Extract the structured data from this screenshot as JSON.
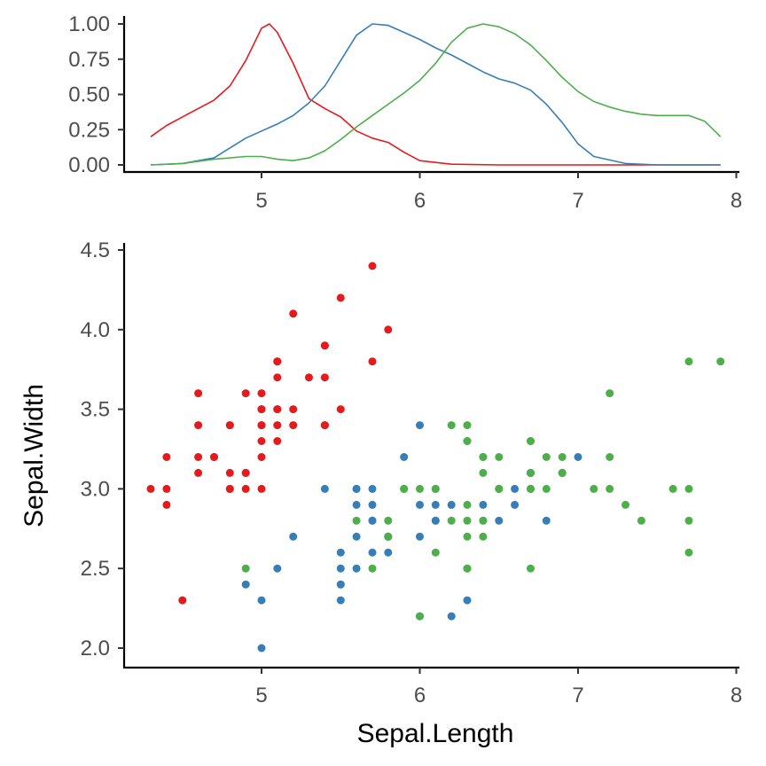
{
  "chart_data": [
    {
      "type": "line",
      "title": "",
      "xlabel": "",
      "ylabel": "",
      "xlim": [
        4.3,
        7.9
      ],
      "ylim": [
        0,
        1.0
      ],
      "x_ticks": [
        "5",
        "6",
        "7",
        "8"
      ],
      "y_ticks": [
        "0.00",
        "0.25",
        "0.50",
        "0.75",
        "1.00"
      ],
      "grid": false,
      "legend": "none",
      "series": [
        {
          "color": "#E41A1C",
          "points": [
            [
              4.3,
              0.2
            ],
            [
              4.4,
              0.28
            ],
            [
              4.5,
              0.34
            ],
            [
              4.6,
              0.4
            ],
            [
              4.7,
              0.46
            ],
            [
              4.8,
              0.56
            ],
            [
              4.9,
              0.74
            ],
            [
              5.0,
              0.97
            ],
            [
              5.05,
              1.0
            ],
            [
              5.1,
              0.94
            ],
            [
              5.2,
              0.72
            ],
            [
              5.3,
              0.47
            ],
            [
              5.4,
              0.4
            ],
            [
              5.5,
              0.34
            ],
            [
              5.6,
              0.24
            ],
            [
              5.7,
              0.19
            ],
            [
              5.8,
              0.16
            ],
            [
              5.9,
              0.09
            ],
            [
              6.0,
              0.03
            ],
            [
              6.2,
              0.005
            ],
            [
              6.5,
              0.0
            ],
            [
              7.0,
              0.0
            ],
            [
              7.5,
              0.0
            ],
            [
              7.9,
              0.0
            ]
          ]
        },
        {
          "color": "#377EB8",
          "points": [
            [
              4.3,
              0.0
            ],
            [
              4.5,
              0.01
            ],
            [
              4.7,
              0.05
            ],
            [
              4.8,
              0.12
            ],
            [
              4.9,
              0.19
            ],
            [
              5.0,
              0.24
            ],
            [
              5.1,
              0.29
            ],
            [
              5.2,
              0.35
            ],
            [
              5.3,
              0.44
            ],
            [
              5.4,
              0.56
            ],
            [
              5.5,
              0.74
            ],
            [
              5.6,
              0.92
            ],
            [
              5.7,
              1.0
            ],
            [
              5.8,
              0.99
            ],
            [
              5.9,
              0.94
            ],
            [
              6.0,
              0.89
            ],
            [
              6.1,
              0.83
            ],
            [
              6.2,
              0.78
            ],
            [
              6.3,
              0.72
            ],
            [
              6.4,
              0.66
            ],
            [
              6.5,
              0.61
            ],
            [
              6.6,
              0.58
            ],
            [
              6.7,
              0.53
            ],
            [
              6.8,
              0.43
            ],
            [
              6.9,
              0.3
            ],
            [
              7.0,
              0.15
            ],
            [
              7.1,
              0.06
            ],
            [
              7.3,
              0.01
            ],
            [
              7.5,
              0.0
            ],
            [
              7.9,
              0.0
            ]
          ]
        },
        {
          "color": "#4DAF4A",
          "points": [
            [
              4.3,
              0.0
            ],
            [
              4.5,
              0.01
            ],
            [
              4.7,
              0.04
            ],
            [
              4.9,
              0.06
            ],
            [
              5.0,
              0.06
            ],
            [
              5.1,
              0.04
            ],
            [
              5.2,
              0.03
            ],
            [
              5.3,
              0.05
            ],
            [
              5.4,
              0.1
            ],
            [
              5.5,
              0.18
            ],
            [
              5.6,
              0.27
            ],
            [
              5.7,
              0.35
            ],
            [
              5.8,
              0.43
            ],
            [
              5.9,
              0.51
            ],
            [
              6.0,
              0.6
            ],
            [
              6.1,
              0.72
            ],
            [
              6.2,
              0.87
            ],
            [
              6.3,
              0.97
            ],
            [
              6.4,
              1.0
            ],
            [
              6.5,
              0.98
            ],
            [
              6.6,
              0.93
            ],
            [
              6.7,
              0.85
            ],
            [
              6.8,
              0.74
            ],
            [
              6.9,
              0.62
            ],
            [
              7.0,
              0.52
            ],
            [
              7.1,
              0.45
            ],
            [
              7.2,
              0.41
            ],
            [
              7.3,
              0.38
            ],
            [
              7.4,
              0.36
            ],
            [
              7.5,
              0.35
            ],
            [
              7.6,
              0.35
            ],
            [
              7.7,
              0.35
            ],
            [
              7.8,
              0.31
            ],
            [
              7.9,
              0.2
            ]
          ]
        }
      ]
    },
    {
      "type": "scatter",
      "title": "",
      "xlabel": "Sepal.Length",
      "ylabel": "Sepal.Width",
      "xlim": [
        4.3,
        7.9
      ],
      "ylim": [
        2.0,
        4.4
      ],
      "x_ticks": [
        "5",
        "6",
        "7",
        "8"
      ],
      "y_ticks": [
        "2.0",
        "2.5",
        "3.0",
        "3.5",
        "4.0",
        "4.5"
      ],
      "grid": false,
      "legend": "none",
      "series": [
        {
          "color": "#E41A1C",
          "points": [
            [
              5.1,
              3.5
            ],
            [
              4.9,
              3.0
            ],
            [
              4.7,
              3.2
            ],
            [
              4.6,
              3.1
            ],
            [
              5.0,
              3.6
            ],
            [
              5.4,
              3.9
            ],
            [
              4.6,
              3.4
            ],
            [
              5.0,
              3.4
            ],
            [
              4.4,
              2.9
            ],
            [
              4.9,
              3.1
            ],
            [
              5.4,
              3.7
            ],
            [
              4.8,
              3.4
            ],
            [
              4.8,
              3.0
            ],
            [
              4.3,
              3.0
            ],
            [
              5.8,
              4.0
            ],
            [
              5.7,
              4.4
            ],
            [
              5.4,
              3.9
            ],
            [
              5.1,
              3.5
            ],
            [
              5.7,
              3.8
            ],
            [
              5.1,
              3.8
            ],
            [
              5.4,
              3.4
            ],
            [
              5.1,
              3.7
            ],
            [
              4.6,
              3.6
            ],
            [
              5.1,
              3.3
            ],
            [
              4.8,
              3.4
            ],
            [
              5.0,
              3.0
            ],
            [
              5.0,
              3.4
            ],
            [
              5.2,
              3.5
            ],
            [
              5.2,
              3.4
            ],
            [
              4.7,
              3.2
            ],
            [
              4.8,
              3.1
            ],
            [
              5.4,
              3.4
            ],
            [
              5.2,
              4.1
            ],
            [
              5.5,
              4.2
            ],
            [
              4.9,
              3.1
            ],
            [
              5.0,
              3.2
            ],
            [
              5.5,
              3.5
            ],
            [
              4.9,
              3.6
            ],
            [
              4.4,
              3.0
            ],
            [
              5.1,
              3.4
            ],
            [
              5.0,
              3.5
            ],
            [
              4.5,
              2.3
            ],
            [
              4.4,
              3.2
            ],
            [
              5.0,
              3.5
            ],
            [
              5.1,
              3.8
            ],
            [
              4.8,
              3.0
            ],
            [
              5.1,
              3.8
            ],
            [
              4.6,
              3.2
            ],
            [
              5.3,
              3.7
            ],
            [
              5.0,
              3.3
            ]
          ]
        },
        {
          "color": "#377EB8",
          "points": [
            [
              7.0,
              3.2
            ],
            [
              6.4,
              3.2
            ],
            [
              6.9,
              3.1
            ],
            [
              5.5,
              2.3
            ],
            [
              6.5,
              2.8
            ],
            [
              5.7,
              2.8
            ],
            [
              6.3,
              3.3
            ],
            [
              4.9,
              2.4
            ],
            [
              6.6,
              2.9
            ],
            [
              5.2,
              2.7
            ],
            [
              5.0,
              2.0
            ],
            [
              5.9,
              3.0
            ],
            [
              6.0,
              2.2
            ],
            [
              6.1,
              2.9
            ],
            [
              5.6,
              2.9
            ],
            [
              6.7,
              3.1
            ],
            [
              5.6,
              3.0
            ],
            [
              5.8,
              2.7
            ],
            [
              6.2,
              2.2
            ],
            [
              5.6,
              2.5
            ],
            [
              5.9,
              3.2
            ],
            [
              6.1,
              2.8
            ],
            [
              6.3,
              2.5
            ],
            [
              6.1,
              2.8
            ],
            [
              6.4,
              2.9
            ],
            [
              6.6,
              3.0
            ],
            [
              6.8,
              2.8
            ],
            [
              6.7,
              3.0
            ],
            [
              6.0,
              2.9
            ],
            [
              5.7,
              2.6
            ],
            [
              5.5,
              2.4
            ],
            [
              5.5,
              2.4
            ],
            [
              5.8,
              2.7
            ],
            [
              6.0,
              2.7
            ],
            [
              5.4,
              3.0
            ],
            [
              6.0,
              3.4
            ],
            [
              6.7,
              3.1
            ],
            [
              6.3,
              2.3
            ],
            [
              5.6,
              3.0
            ],
            [
              5.5,
              2.5
            ],
            [
              5.5,
              2.6
            ],
            [
              6.1,
              3.0
            ],
            [
              5.8,
              2.6
            ],
            [
              5.0,
              2.3
            ],
            [
              5.6,
              2.7
            ],
            [
              5.7,
              3.0
            ],
            [
              5.7,
              2.9
            ],
            [
              6.2,
              2.9
            ],
            [
              5.1,
              2.5
            ],
            [
              5.7,
              2.8
            ]
          ]
        },
        {
          "color": "#4DAF4A",
          "points": [
            [
              6.3,
              3.3
            ],
            [
              5.8,
              2.7
            ],
            [
              7.1,
              3.0
            ],
            [
              6.3,
              2.9
            ],
            [
              6.5,
              3.0
            ],
            [
              7.6,
              3.0
            ],
            [
              4.9,
              2.5
            ],
            [
              7.3,
              2.9
            ],
            [
              6.7,
              2.5
            ],
            [
              7.2,
              3.6
            ],
            [
              6.5,
              3.2
            ],
            [
              6.4,
              2.7
            ],
            [
              6.8,
              3.0
            ],
            [
              5.7,
              2.5
            ],
            [
              5.8,
              2.8
            ],
            [
              6.4,
              3.2
            ],
            [
              6.5,
              3.0
            ],
            [
              7.7,
              3.8
            ],
            [
              7.7,
              2.6
            ],
            [
              6.0,
              2.2
            ],
            [
              6.9,
              3.2
            ],
            [
              5.6,
              2.8
            ],
            [
              7.7,
              2.8
            ],
            [
              6.3,
              2.7
            ],
            [
              6.7,
              3.3
            ],
            [
              7.2,
              3.2
            ],
            [
              6.2,
              2.8
            ],
            [
              6.1,
              3.0
            ],
            [
              6.4,
              2.8
            ],
            [
              7.2,
              3.0
            ],
            [
              7.4,
              2.8
            ],
            [
              7.9,
              3.8
            ],
            [
              6.4,
              2.8
            ],
            [
              6.3,
              2.8
            ],
            [
              6.1,
              2.6
            ],
            [
              7.7,
              3.0
            ],
            [
              6.3,
              3.4
            ],
            [
              6.4,
              3.1
            ],
            [
              6.0,
              3.0
            ],
            [
              6.9,
              3.1
            ],
            [
              6.7,
              3.1
            ],
            [
              6.9,
              3.1
            ],
            [
              5.8,
              2.7
            ],
            [
              6.8,
              3.2
            ],
            [
              6.7,
              3.3
            ],
            [
              6.7,
              3.0
            ],
            [
              6.3,
              2.5
            ],
            [
              6.5,
              3.0
            ],
            [
              6.2,
              3.4
            ],
            [
              5.9,
              3.0
            ]
          ]
        }
      ]
    }
  ]
}
